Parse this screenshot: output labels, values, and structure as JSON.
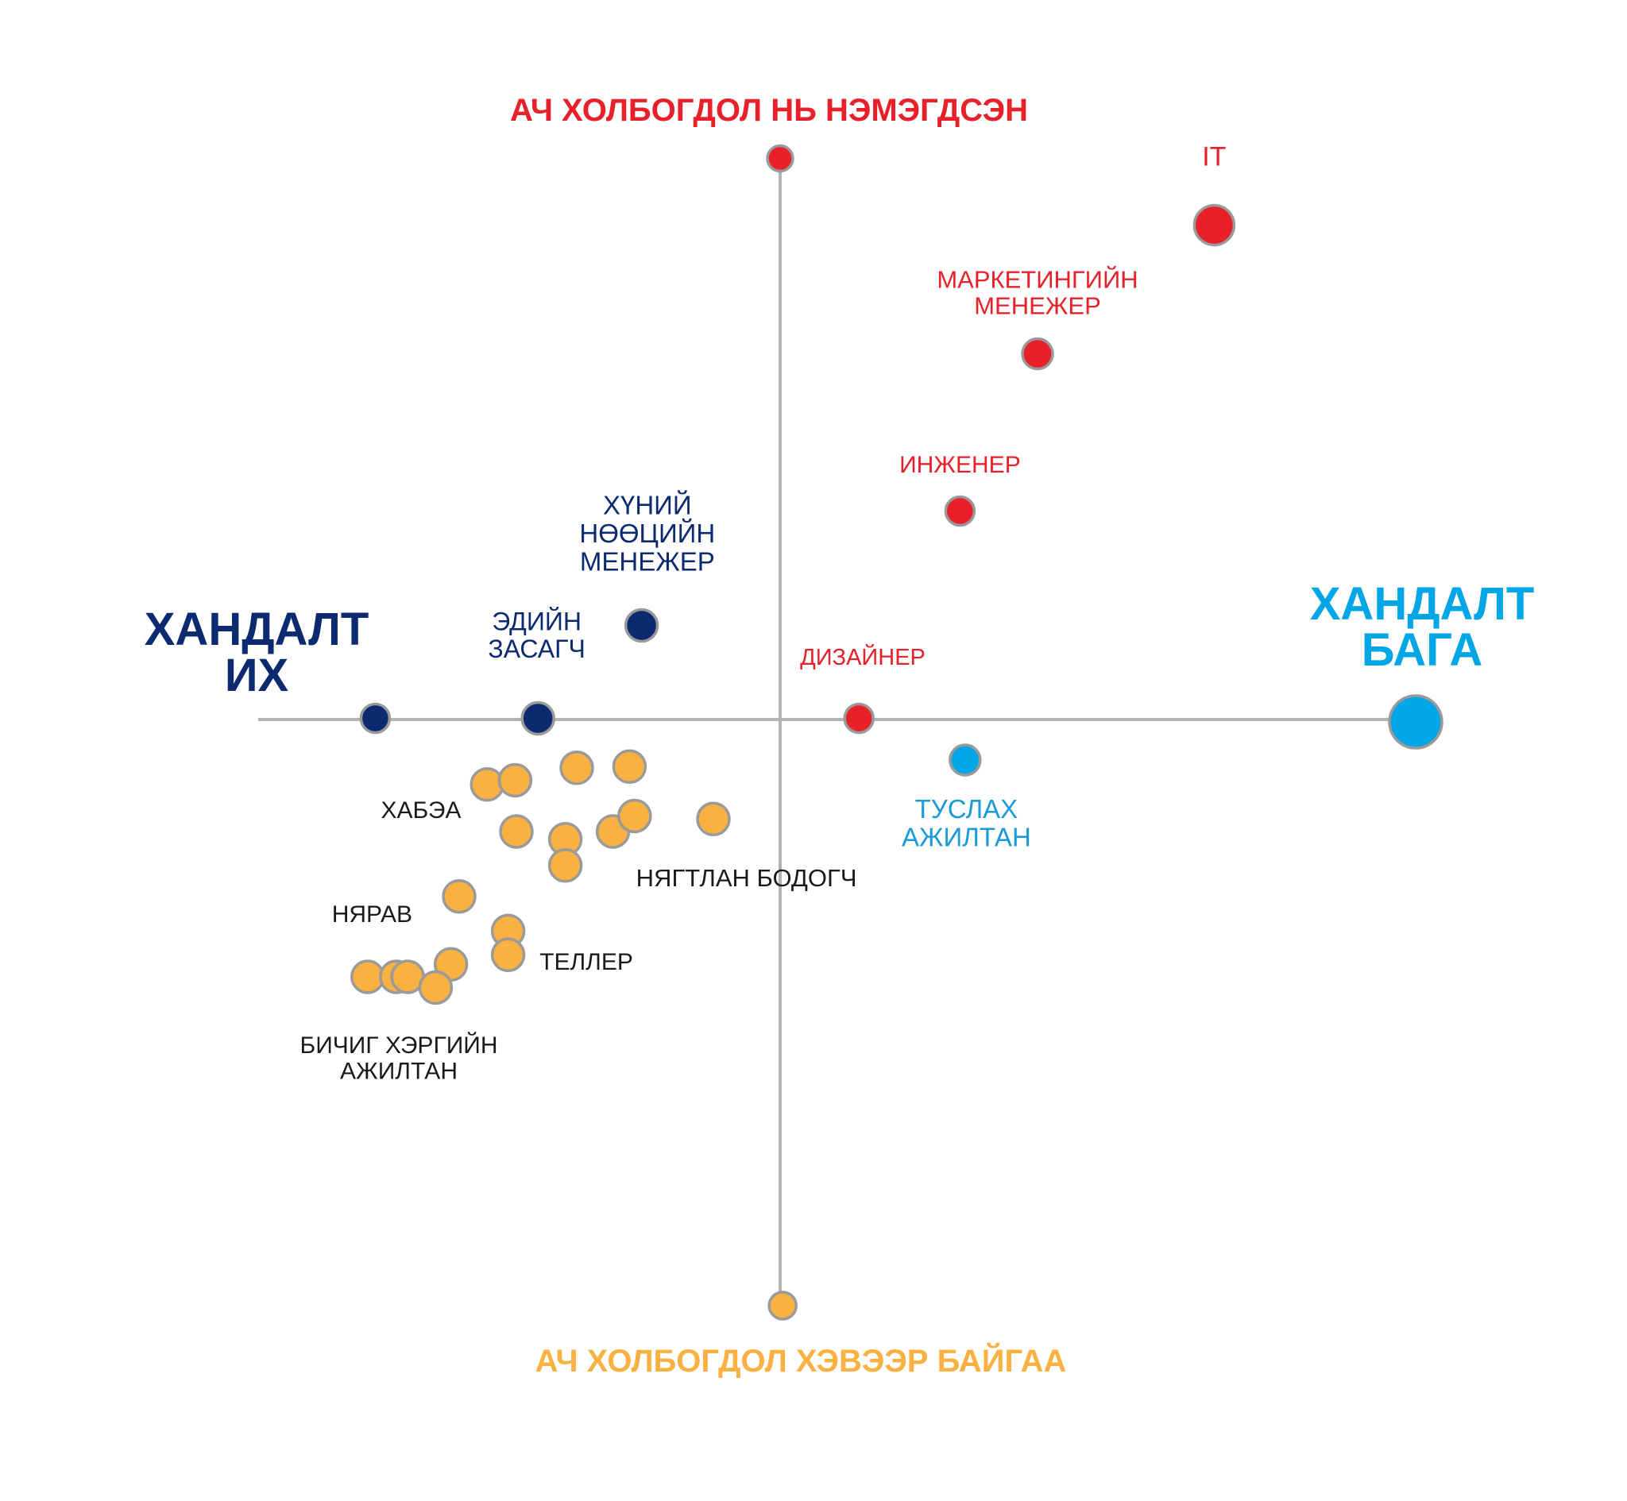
{
  "chart_data": {
    "type": "scatter",
    "title": "",
    "axes": {
      "top": "АЧ ХОЛБОГДОЛ НЬ НЭМЭГДСЭН",
      "bottom": "АЧ ХОЛБОГДОЛ ХЭВЭЭР БАЙГАА",
      "left": [
        "ХАНДАЛТ",
        "ИХ"
      ],
      "right": [
        "ХАНДАЛТ",
        "БАГА"
      ]
    },
    "xlim": [
      -1,
      1
    ],
    "ylim": [
      -1,
      1
    ],
    "grid": false,
    "legend": "none",
    "colors": {
      "red": "#e8202a",
      "navy": "#0b2a6f",
      "blue": "#00a6e6",
      "blue_label": "#1a9ad6",
      "orange": "#f9b141",
      "axis": "#b3b3b3",
      "outline": "#9a9a9a",
      "black": "#1a1a1a"
    },
    "points": [
      {
        "x": 0.0,
        "y": 0.942,
        "color": "red",
        "r": 16
      },
      {
        "x": 0.004,
        "y": -0.984,
        "color": "orange",
        "r": 17
      },
      {
        "x": 1.0,
        "y": -0.004,
        "color": "blue",
        "r": 33
      },
      {
        "x": 0.683,
        "y": 0.83,
        "color": "red",
        "r": 25
      },
      {
        "x": 0.405,
        "y": 0.614,
        "color": "red",
        "r": 19
      },
      {
        "x": 0.283,
        "y": 0.35,
        "color": "red",
        "r": 18
      },
      {
        "x": 0.124,
        "y": 0.002,
        "color": "red",
        "r": 18
      },
      {
        "x": 0.291,
        "y": -0.068,
        "color": "blue",
        "r": 19
      },
      {
        "x": -0.218,
        "y": 0.158,
        "color": "navy",
        "r": 20
      },
      {
        "x": -0.381,
        "y": 0.002,
        "color": "navy",
        "r": 20
      },
      {
        "x": -0.637,
        "y": 0.002,
        "color": "navy",
        "r": 18
      },
      {
        "x": -0.461,
        "y": -0.109,
        "color": "orange",
        "r": 20
      },
      {
        "x": -0.417,
        "y": -0.102,
        "color": "orange",
        "r": 20
      },
      {
        "x": -0.32,
        "y": -0.081,
        "color": "orange",
        "r": 20
      },
      {
        "x": -0.237,
        "y": -0.079,
        "color": "orange",
        "r": 20
      },
      {
        "x": -0.415,
        "y": -0.188,
        "color": "orange",
        "r": 20
      },
      {
        "x": -0.338,
        "y": -0.201,
        "color": "orange",
        "r": 20
      },
      {
        "x": -0.263,
        "y": -0.188,
        "color": "orange",
        "r": 20
      },
      {
        "x": -0.229,
        "y": -0.162,
        "color": "orange",
        "r": 20
      },
      {
        "x": -0.105,
        "y": -0.167,
        "color": "orange",
        "r": 20
      },
      {
        "x": -0.338,
        "y": -0.245,
        "color": "orange",
        "r": 20
      },
      {
        "x": -0.505,
        "y": -0.297,
        "color": "orange",
        "r": 20
      },
      {
        "x": -0.428,
        "y": -0.355,
        "color": "orange",
        "r": 20
      },
      {
        "x": -0.428,
        "y": -0.395,
        "color": "orange",
        "r": 20
      },
      {
        "x": -0.518,
        "y": -0.411,
        "color": "orange",
        "r": 20
      },
      {
        "x": -0.649,
        "y": -0.432,
        "color": "orange",
        "r": 20
      },
      {
        "x": -0.604,
        "y": -0.432,
        "color": "orange",
        "r": 20
      },
      {
        "x": -0.586,
        "y": -0.432,
        "color": "orange",
        "r": 20
      },
      {
        "x": -0.542,
        "y": -0.45,
        "color": "orange",
        "r": 20
      }
    ],
    "labels": [
      {
        "lines": [
          "IT"
        ],
        "x": 0.683,
        "y": 0.93,
        "color": "red",
        "size": 34
      },
      {
        "lines": [
          "МАРКЕТИНГИЙН",
          "МЕНЕЖЕР"
        ],
        "x": 0.405,
        "y": 0.725,
        "color": "red",
        "size": 31
      },
      {
        "lines": [
          "ИНЖЕНЕР"
        ],
        "x": 0.283,
        "y": 0.415,
        "color": "red",
        "size": 30
      },
      {
        "lines": [
          "ДИЗАЙНЕР"
        ],
        "x": 0.13,
        "y": 0.092,
        "color": "red",
        "size": 29
      },
      {
        "lines": [
          "ТУСЛАХ",
          "АЖИЛТАН"
        ],
        "x": 0.293,
        "y": -0.165,
        "color": "blue_label",
        "size": 33
      },
      {
        "lines": [
          "ХҮНИЙ",
          "НӨӨЦИЙН",
          "МЕНЕЖЕР"
        ],
        "x": -0.209,
        "y": 0.345,
        "color": "navy",
        "size": 33
      },
      {
        "lines": [
          "ЭДИЙН",
          "ЗАСАГЧ"
        ],
        "x": -0.383,
        "y": 0.15,
        "color": "navy",
        "size": 32
      },
      {
        "lines": [
          "ХАБЭА"
        ],
        "x": -0.565,
        "y": -0.165,
        "color": "black",
        "size": 30
      },
      {
        "lines": [
          "НЯГТЛАН БОДОГЧ"
        ],
        "x": -0.053,
        "y": -0.28,
        "color": "black",
        "size": 31
      },
      {
        "lines": [
          "НЯРАВ"
        ],
        "x": -0.642,
        "y": -0.34,
        "color": "black",
        "size": 30
      },
      {
        "lines": [
          "ТЕЛЛЕР"
        ],
        "x": -0.305,
        "y": -0.42,
        "color": "black",
        "size": 30
      },
      {
        "lines": [
          "БИЧИГ ХЭРГИЙН",
          "АЖИЛТАН"
        ],
        "x": -0.6,
        "y": -0.56,
        "color": "black",
        "size": 30
      }
    ]
  }
}
